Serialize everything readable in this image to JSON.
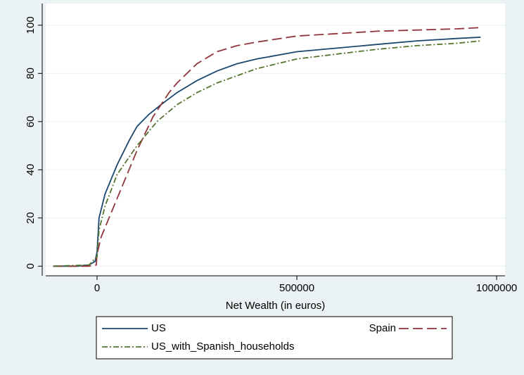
{
  "chart_data": {
    "type": "line",
    "xlabel": "Net Wealth (in euros)",
    "xlim": [
      -128500,
      1021000
    ],
    "xticks": [
      0,
      500000,
      1000000
    ],
    "ylim": [
      -4,
      109
    ],
    "yticks": [
      0,
      20,
      40,
      60,
      80,
      100
    ],
    "grid": true,
    "legend": "bottom",
    "series": [
      {
        "name": "US",
        "color": "#1a476f",
        "dash": "none",
        "x": [
          -110000,
          -50000,
          -20000,
          -5000,
          0,
          5000,
          20000,
          50000,
          80000,
          100000,
          130000,
          160000,
          200000,
          250000,
          300000,
          350000,
          400000,
          500000,
          600000,
          700000,
          800000,
          900000,
          960000
        ],
        "values": [
          0,
          0,
          0.5,
          2,
          6,
          20,
          30,
          42,
          52,
          58,
          63,
          67,
          72,
          77,
          81,
          84,
          86,
          89,
          90.5,
          92,
          93.5,
          94.5,
          95
        ]
      },
      {
        "name": "Spain",
        "color": "#90353b",
        "dash": "14,6",
        "x": [
          -110000,
          -20000,
          -2000,
          0,
          10000,
          30000,
          60000,
          100000,
          140000,
          180000,
          200000,
          250000,
          300000,
          350000,
          400000,
          500000,
          600000,
          700000,
          800000,
          900000,
          960000
        ],
        "values": [
          0,
          0,
          0.5,
          5,
          12,
          20,
          32,
          48,
          62,
          72,
          76,
          84,
          89,
          91.5,
          93,
          95.5,
          96.5,
          97.5,
          98,
          98.5,
          99
        ]
      },
      {
        "name": "US_with_Spanish_households",
        "color": "#55752f",
        "dash": "8,3,2,3",
        "x": [
          -110000,
          -20000,
          0,
          5000,
          20000,
          50000,
          100000,
          150000,
          200000,
          250000,
          300000,
          350000,
          400000,
          500000,
          600000,
          700000,
          800000,
          900000,
          960000
        ],
        "values": [
          0,
          0.5,
          4,
          15,
          25,
          38,
          50,
          60,
          67,
          72,
          76,
          79,
          82,
          86,
          88,
          90,
          91.5,
          92.5,
          93.5
        ]
      }
    ]
  }
}
